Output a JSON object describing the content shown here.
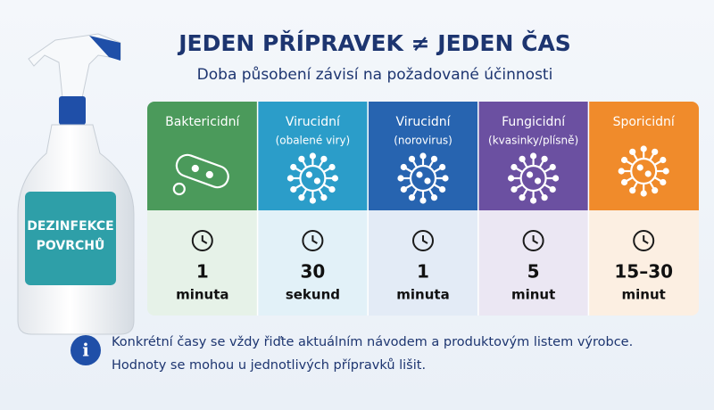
{
  "header": {
    "title": "JEDEN PŘÍPRAVEK ≠ JEDEN ČAS",
    "subtitle": "Doba působení závisí na požadované účinnosti"
  },
  "bottle": {
    "label": [
      "DEZINFEKCE",
      "POVRCHŮ"
    ]
  },
  "columns": [
    {
      "name": "Baktericidní",
      "time": "1",
      "unit": "minuta",
      "color": "#4b9a5b",
      "tint": "#e6f2e8"
    },
    {
      "name": "Virucidní",
      "sub": "(obalené viry)",
      "time": "30",
      "unit": "sekund",
      "color": "#2b9dc9",
      "tint": "#e2f1f8"
    },
    {
      "name": "Virucidní",
      "sub": "(norovirus)",
      "time": "1",
      "unit": "minuta",
      "color": "#2764b0",
      "tint": "#e3ebf6"
    },
    {
      "name": "Fungicidní",
      "sub": "(kvasinky/plísně)",
      "time": "5",
      "unit": "minut",
      "color": "#6b50a1",
      "tint": "#ebe7f3"
    },
    {
      "name": "Sporicidní",
      "time": "15–30",
      "unit": "minut",
      "color": "#f08b2b",
      "tint": "#fcefe2"
    }
  ],
  "note": {
    "lines": [
      "Konkrétní časy se vždy řiďte aktuálním návodem a produktovým listem výrobce.",
      "Hodnoty se mohou u jednotlivých přípravků lišit."
    ]
  }
}
